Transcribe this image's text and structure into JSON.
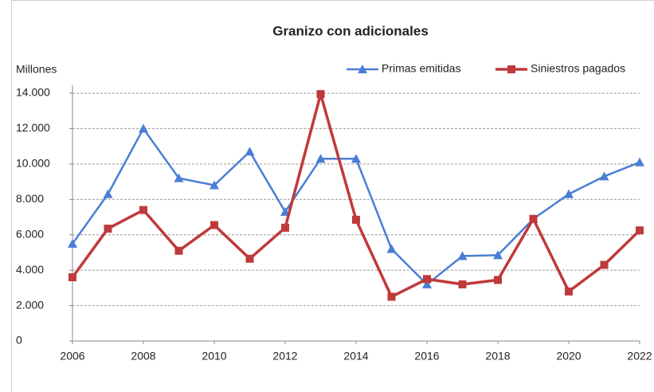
{
  "chart_data": {
    "type": "line",
    "title": "Granizo con adicionales",
    "y_label": "Millones",
    "x": [
      2006,
      2007,
      2008,
      2009,
      2010,
      2011,
      2012,
      2013,
      2014,
      2015,
      2016,
      2017,
      2018,
      2019,
      2020,
      2021,
      2022
    ],
    "series": [
      {
        "name": "Primas emitidas",
        "color": "#4a7ed6",
        "marker": "triangle",
        "values": [
          5500,
          8300,
          12000,
          9200,
          8800,
          10700,
          7300,
          10300,
          10300,
          5200,
          3200,
          4800,
          4850,
          6900,
          8300,
          9300,
          10100
        ]
      },
      {
        "name": "Siniestros pagados",
        "color": "#c0393b",
        "marker": "square",
        "values": [
          3600,
          6350,
          7400,
          5100,
          6550,
          4650,
          6400,
          13950,
          6850,
          2500,
          3500,
          3200,
          3450,
          6900,
          2800,
          4300,
          6250
        ]
      }
    ],
    "xlim": [
      2006,
      2022
    ],
    "xticks": [
      2006,
      2008,
      2010,
      2012,
      2014,
      2016,
      2018,
      2020,
      2022
    ],
    "ylim": [
      0,
      14000
    ],
    "yticks": [
      0,
      {
        "value": 2000,
        "label": "2.000"
      },
      {
        "value": 4000,
        "label": "4.000"
      },
      {
        "value": 6000,
        "label": "6.000"
      },
      {
        "value": 8000,
        "label": "8.000"
      },
      {
        "value": 10000,
        "label": "10.000"
      },
      {
        "value": 12000,
        "label": "12.000"
      },
      {
        "value": 14000,
        "label": "14.000"
      }
    ],
    "grid": true,
    "legend": "top-right"
  }
}
